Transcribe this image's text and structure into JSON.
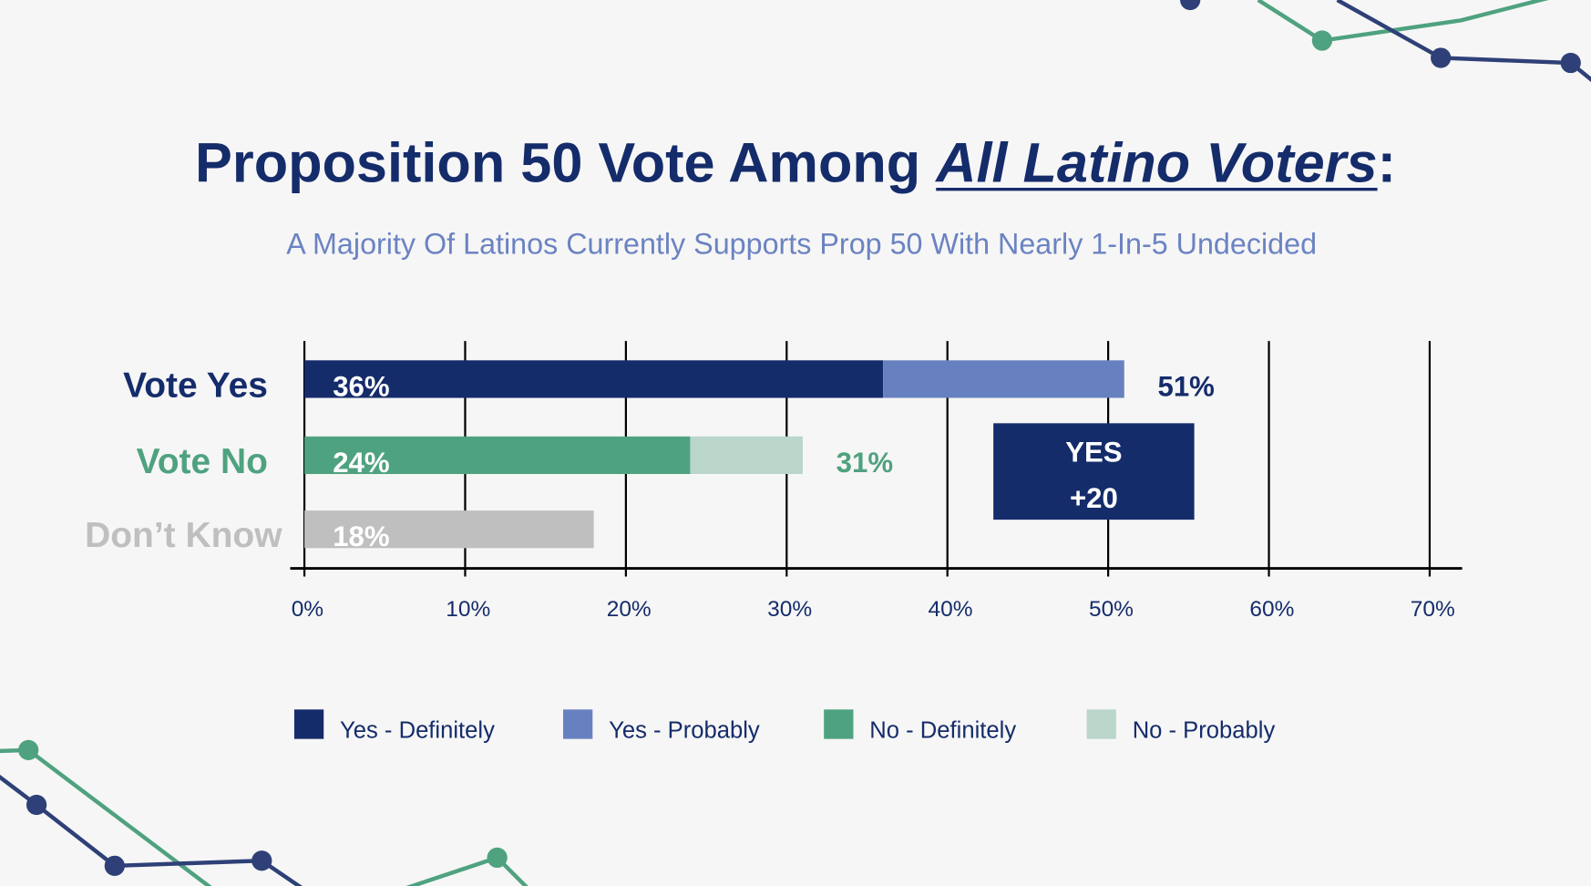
{
  "title": {
    "prefix": "Proposition 50 Vote Among ",
    "emphasis": "All Latino Voters",
    "suffix": ":"
  },
  "subtitle": "A Majority Of Latinos Currently Supports Prop 50 With Nearly 1-In-5 Undecided",
  "chart_data": {
    "type": "bar",
    "orientation": "horizontal",
    "stacked": true,
    "categories": [
      "Vote Yes",
      "Vote No",
      "Don’t Know"
    ],
    "category_colors": [
      "#152c6b",
      "#4fa27f",
      "#bfbfbf"
    ],
    "series": [
      {
        "name": "Yes - Definitely",
        "color": "#152c6b",
        "values": [
          36,
          0,
          0
        ]
      },
      {
        "name": "Yes - Probably",
        "color": "#6781c0",
        "values": [
          15,
          0,
          0
        ]
      },
      {
        "name": "No - Definitely",
        "color": "#4fa27f",
        "values": [
          0,
          24,
          0
        ]
      },
      {
        "name": "No - Probably",
        "color": "#bad6cb",
        "values": [
          0,
          7,
          0
        ]
      },
      {
        "color": "#bfbfbf",
        "values": [
          0,
          0,
          18
        ]
      }
    ],
    "inner_labels": [
      "36%",
      "24%",
      "18%"
    ],
    "total_labels": [
      "51%",
      "31%",
      ""
    ],
    "xlim": [
      0,
      70
    ],
    "x_ticks": [
      "0%",
      "10%",
      "20%",
      "30%",
      "40%",
      "50%",
      "60%",
      "70%"
    ],
    "grid": true,
    "legend_position": "bottom",
    "annotation": {
      "line1": "YES",
      "line2": "+20",
      "color": "#152c6b"
    }
  },
  "decor_colors": {
    "navy": "#2e4077",
    "green": "#4fa27f"
  }
}
